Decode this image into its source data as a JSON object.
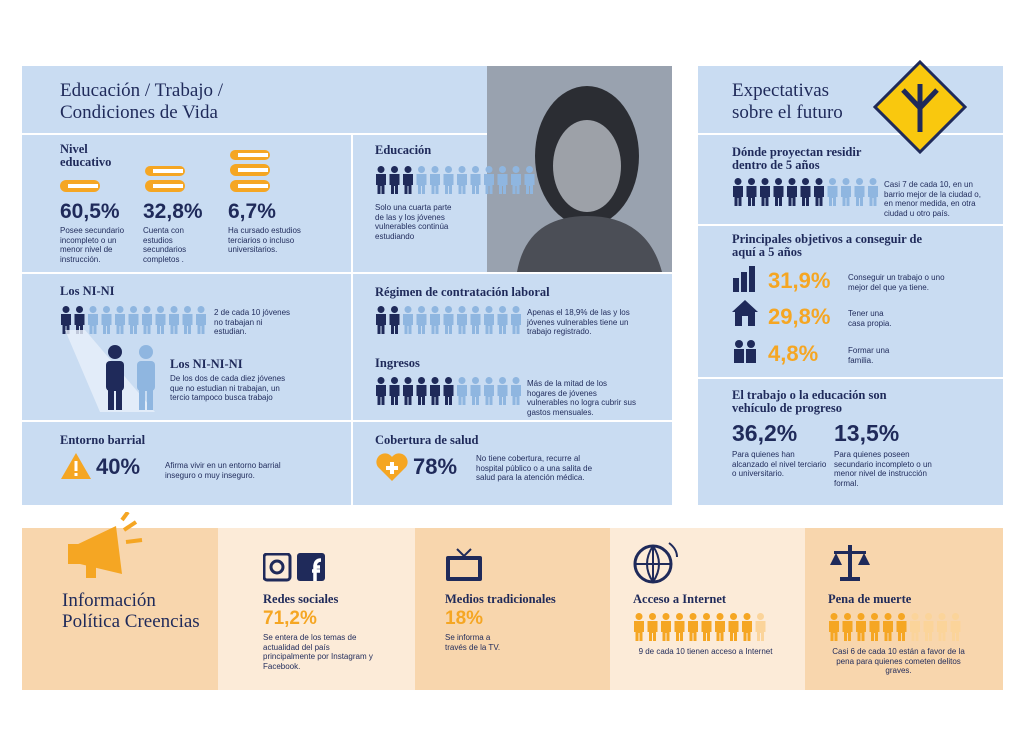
{
  "left": {
    "title": "Educación / Trabajo / Condiciones de Vida",
    "nivel": {
      "title": "Nivel educativo",
      "items": [
        {
          "value": "60,5%",
          "text": "Posee secundario incompleto o un menor nivel de instrucción."
        },
        {
          "value": "32,8%",
          "text": "Cuenta con estudios secundarios completos ."
        },
        {
          "value": "6,7%",
          "text": "Ha cursado estudios terciarios o incluso universitarios."
        }
      ]
    },
    "nini": {
      "title": "Los NI-NI",
      "text": "2 de cada 10 jóvenes no trabajan ni estudian.",
      "pictogram": {
        "filled": 2,
        "total": 11
      }
    },
    "ninini": {
      "title": "Los NI-NI-NI",
      "text": "De los dos de cada diez jóvenes que no estudian ni trabajan, un tercio tampoco busca trabajo"
    },
    "entorno": {
      "title": "Entorno barrial",
      "value": "40%",
      "text": "Afirma vivir en un entorno barrial inseguro o muy inseguro."
    },
    "educacion": {
      "title": "Educación",
      "text": "Solo una cuarta parte de las y los jóvenes vulnerables continúa estudiando",
      "pictogram": {
        "filled": 3,
        "total": 12
      }
    },
    "regimen": {
      "title": "Régimen de contratación laboral",
      "text": "Apenas el 18,9% de las y los jóvenes vulnerables tiene un trabajo registrado.",
      "pictogram": {
        "filled": 2,
        "total": 11
      }
    },
    "ingresos": {
      "title": "Ingresos",
      "text": "Más de la mitad de los hogares de jóvenes vulnerables no logra cubrir sus gastos mensuales.",
      "pictogram": {
        "filled": 6,
        "total": 11
      }
    },
    "salud": {
      "title": "Cobertura de salud",
      "value": "78%",
      "text": "No tiene cobertura, recurre al hospital público o a una salita de salud para la atención médica."
    }
  },
  "right": {
    "title": "Expectativas sobre el futuro",
    "residir": {
      "title": "Dónde proyectan residir dentro de 5 años",
      "text": "Casi 7 de cada 10, en un barrio mejor de la ciudad o, en menor medida, en otra ciudad u otro país.",
      "pictogram": {
        "filled": 7,
        "total": 11
      }
    },
    "objetivos": {
      "title": "Principales objetivos a conseguir de aquí a 5 años",
      "items": [
        {
          "value": "31,9%",
          "text": "Conseguir un trabajo o uno mejor del que ya tiene."
        },
        {
          "value": "29,8%",
          "text": "Tener una casa propia."
        },
        {
          "value": "4,8%",
          "text": "Formar una familia."
        }
      ]
    },
    "trabajo": {
      "title": "El trabajo o la educación son vehículo de progreso",
      "items": [
        {
          "value": "36,2%",
          "text": "Para quienes han alcanzado el nivel terciario o universitario."
        },
        {
          "value": "13,5%",
          "text": "Para quienes poseen secundario incompleto o un menor nivel de instrucción formal."
        }
      ]
    }
  },
  "bottom": {
    "title": "Información Política Creencias",
    "items": [
      {
        "title": "Redes sociales",
        "value": "71,2%",
        "text": "Se entera de los temas de actualidad del país principalmente por Instagram y Facebook."
      },
      {
        "title": "Medios tradicionales",
        "value": "18%",
        "text": "Se informa a través de la TV."
      },
      {
        "title": "Acceso a Internet",
        "text": "9 de cada 10 tienen acceso a Internet",
        "pictogram": {
          "filled": 9,
          "total": 10
        }
      },
      {
        "title": "Pena de muerte",
        "text": "Casi 6 de cada 10 están a favor de la pena para quienes cometen delitos graves.",
        "pictogram": {
          "filled": 6,
          "total": 10
        }
      }
    ]
  }
}
